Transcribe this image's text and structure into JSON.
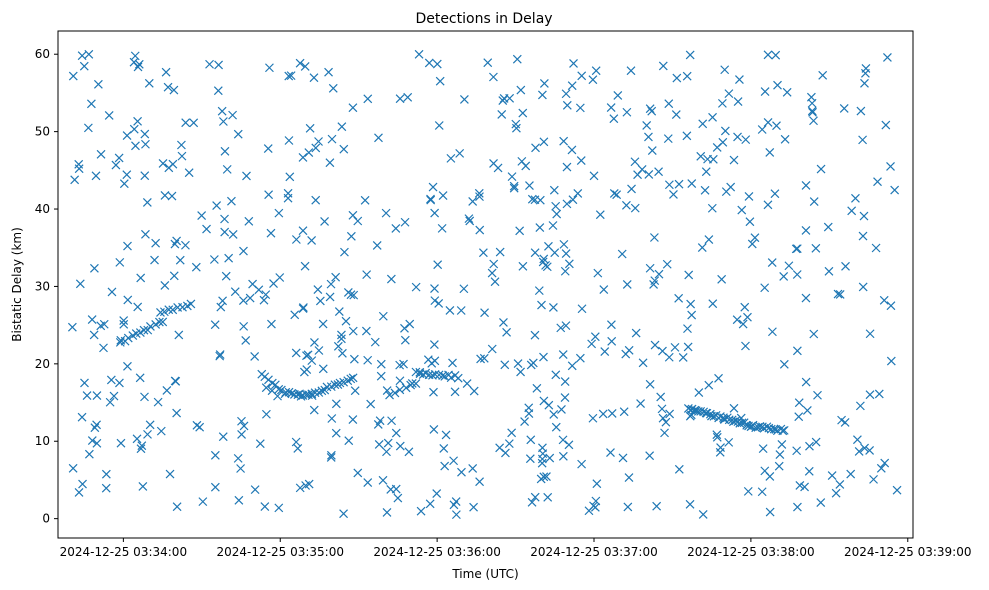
{
  "chart_data": {
    "type": "scatter",
    "title": "Detections in Delay",
    "xlabel": "Time (UTC)",
    "ylabel": "Bistatic Delay (km)",
    "marker": "x",
    "marker_color": "#1f77b4",
    "grid": false,
    "legend": "none",
    "xlim": [
      "2024-12-25 03:33:35",
      "2024-12-25 03:39:02"
    ],
    "ylim": [
      -2.5,
      63
    ],
    "xticks": [
      "2024-12-25 03:34:00",
      "2024-12-25 03:35:00",
      "2024-12-25 03:36:00",
      "2024-12-25 03:37:00",
      "2024-12-25 03:38:00",
      "2024-12-25 03:39:00"
    ],
    "yticks": [
      0,
      10,
      20,
      30,
      40,
      50,
      60
    ],
    "x_start": "2024-12-25 03:33:40",
    "x_end": "2024-12-25 03:38:56",
    "random_detections": {
      "count": 700,
      "ymin": 0.5,
      "ymax": 60
    },
    "tracks": [
      {
        "from": [
          "2024-12-25 03:33:59",
          22.8
        ],
        "to": [
          "2024-12-25 03:34:15",
          25.5
        ],
        "points": 12
      },
      {
        "from": [
          "2024-12-25 03:34:14",
          26.5
        ],
        "to": [
          "2024-12-25 03:34:26",
          27.8
        ],
        "points": 8
      },
      {
        "from": [
          "2024-12-25 03:34:53",
          18.5
        ],
        "to": [
          "2024-12-25 03:35:02",
          16.2
        ],
        "points": 8
      },
      {
        "from": [
          "2024-12-25 03:35:02",
          16.2
        ],
        "to": [
          "2024-12-25 03:35:12",
          16.0
        ],
        "points": 10
      },
      {
        "from": [
          "2024-12-25 03:35:12",
          16.0
        ],
        "to": [
          "2024-12-25 03:35:28",
          18.2
        ],
        "points": 14
      },
      {
        "from": [
          "2024-12-25 03:35:42",
          16.0
        ],
        "to": [
          "2024-12-25 03:35:52",
          17.5
        ],
        "points": 6
      },
      {
        "from": [
          "2024-12-25 03:35:52",
          18.8
        ],
        "to": [
          "2024-12-25 03:36:08",
          18.3
        ],
        "points": 14
      },
      {
        "from": [
          "2024-12-25 03:37:36",
          14.3
        ],
        "to": [
          "2024-12-25 03:38:00",
          12.0
        ],
        "points": 30
      },
      {
        "from": [
          "2024-12-25 03:38:00",
          12.0
        ],
        "to": [
          "2024-12-25 03:38:13",
          11.4
        ],
        "points": 16
      }
    ]
  }
}
